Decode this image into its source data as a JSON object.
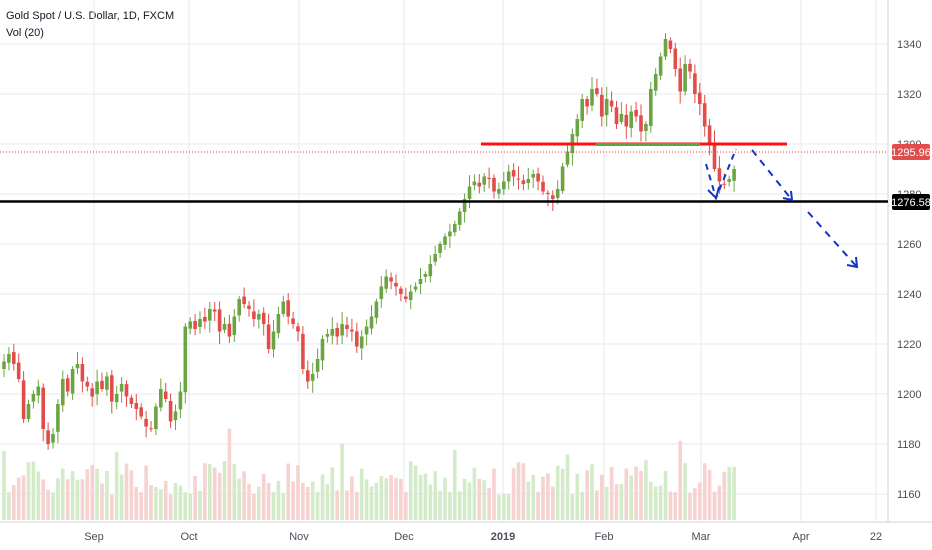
{
  "legend": {
    "symbol": "Gold Spot / U.S. Dollar, 1D, FXCM",
    "volume": "Vol (20)"
  },
  "chart_data": {
    "type": "candlestick",
    "ylim": [
      1150,
      1350
    ],
    "y_ticks": [
      1160,
      1180,
      1200,
      1220,
      1240,
      1260,
      1280,
      1300,
      1320,
      1340
    ],
    "x_labels": [
      "Sep",
      "Oct",
      "Nov",
      "Dec",
      "2019",
      "Feb",
      "Mar",
      "Apr",
      "22"
    ],
    "price_labels": {
      "current": "1295.96",
      "support": "1276.58"
    },
    "colors": {
      "up": "#6ba543",
      "down": "#e04d4a",
      "volume_up": "#d4ebc9",
      "volume_down": "#f6d2d0",
      "resistance": "#ff1111",
      "support": "#000000",
      "neckline": "#5aa53d",
      "projection": "#1533c4",
      "current_price": "#ff3333",
      "axis_text": "#4a4e59",
      "grid": "#e6e8ec"
    }
  }
}
